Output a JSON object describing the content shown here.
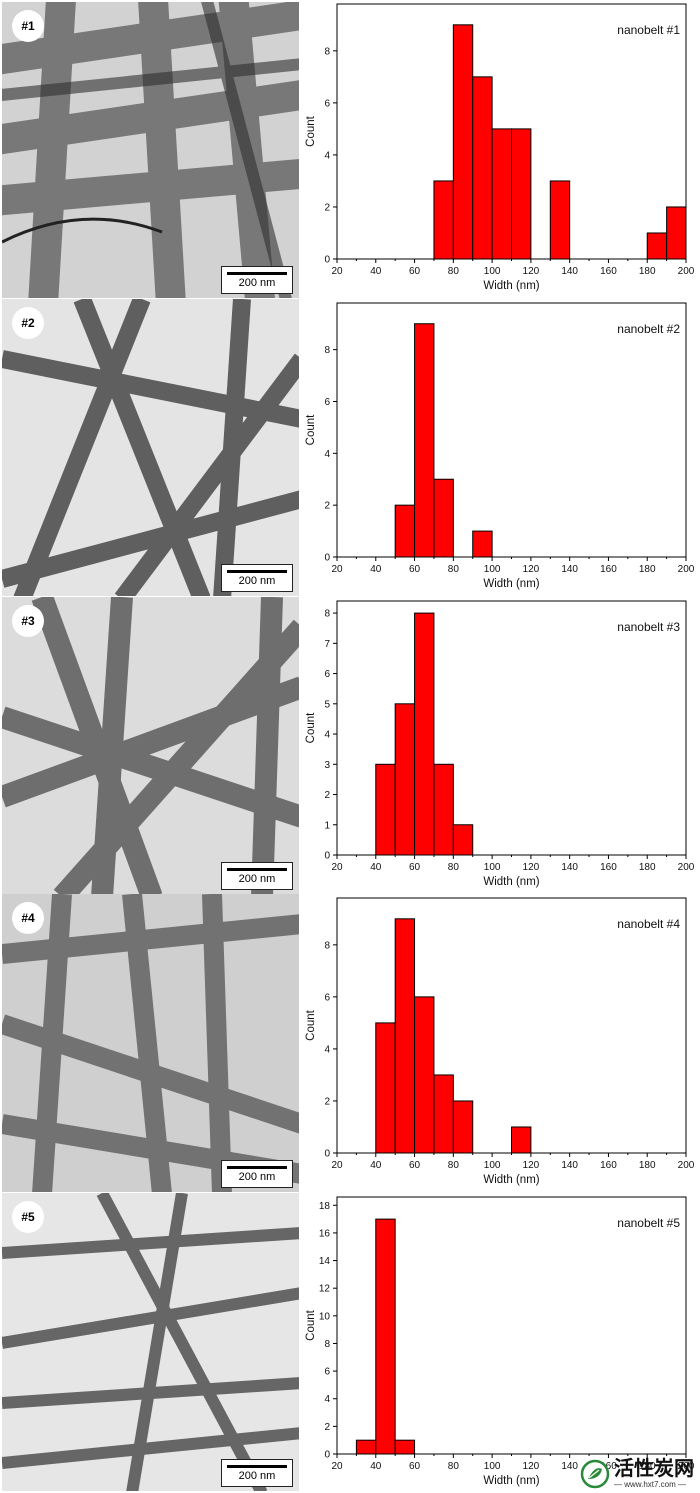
{
  "colors": {
    "bar": "#ff0000",
    "bar_edge": "#000000",
    "tem_bg": "#cfcfcf",
    "belt": "#555555"
  },
  "scale_label": "200 nm",
  "watermark": {
    "chinese": "活性炭网",
    "url": "— www.hxt7.com —",
    "icon": "leaf-badge-icon"
  },
  "panels": [
    {
      "tag": "#1"
    },
    {
      "tag": "#2"
    },
    {
      "tag": "#3"
    },
    {
      "tag": "#4"
    },
    {
      "tag": "#5"
    }
  ],
  "chart_data": [
    {
      "type": "bar",
      "title": "nanobelt #1",
      "xlabel": "Width (nm)",
      "ylabel": "Count",
      "xlim": [
        20,
        200
      ],
      "xticks": [
        20,
        40,
        60,
        80,
        100,
        120,
        140,
        160,
        180,
        200
      ],
      "ylim": [
        0,
        9.8
      ],
      "yticks": [
        0,
        2,
        4,
        6,
        8
      ],
      "bin_width": 10,
      "bins": [
        75,
        85,
        95,
        105,
        115,
        135,
        185,
        195
      ],
      "values": [
        3,
        9,
        7,
        5,
        5,
        3,
        1,
        2
      ]
    },
    {
      "type": "bar",
      "title": "nanobelt #2",
      "xlabel": "Width (nm)",
      "ylabel": "Count",
      "xlim": [
        20,
        200
      ],
      "xticks": [
        20,
        40,
        60,
        80,
        100,
        120,
        140,
        160,
        180,
        200
      ],
      "ylim": [
        0,
        9.8
      ],
      "yticks": [
        0,
        2,
        4,
        6,
        8
      ],
      "bin_width": 10,
      "bins": [
        55,
        65,
        75,
        95
      ],
      "values": [
        2,
        9,
        3,
        1
      ]
    },
    {
      "type": "bar",
      "title": "nanobelt #3",
      "xlabel": "Width (nm)",
      "ylabel": "Count",
      "xlim": [
        20,
        200
      ],
      "xticks": [
        20,
        40,
        60,
        80,
        100,
        120,
        140,
        160,
        180,
        200
      ],
      "ylim": [
        0,
        8.4
      ],
      "yticks": [
        0,
        1,
        2,
        3,
        4,
        5,
        6,
        7,
        8
      ],
      "bin_width": 10,
      "bins": [
        45,
        55,
        65,
        75,
        85
      ],
      "values": [
        3,
        5,
        8,
        3,
        1
      ]
    },
    {
      "type": "bar",
      "title": "nanobelt #4",
      "xlabel": "Width (nm)",
      "ylabel": "Count",
      "xlim": [
        20,
        200
      ],
      "xticks": [
        20,
        40,
        60,
        80,
        100,
        120,
        140,
        160,
        180,
        200
      ],
      "ylim": [
        0,
        9.8
      ],
      "yticks": [
        0,
        2,
        4,
        6,
        8
      ],
      "bin_width": 10,
      "bins": [
        45,
        55,
        65,
        75,
        85,
        115
      ],
      "values": [
        5,
        9,
        6,
        3,
        2,
        1
      ]
    },
    {
      "type": "bar",
      "title": "nanobelt #5",
      "xlabel": "Width (nm)",
      "ylabel": "Count",
      "xlim": [
        20,
        200
      ],
      "xticks": [
        20,
        40,
        60,
        80,
        100,
        120,
        140,
        160,
        180,
        200
      ],
      "ylim": [
        0,
        18.6
      ],
      "yticks": [
        0,
        2,
        4,
        6,
        8,
        10,
        12,
        14,
        16,
        18
      ],
      "bin_width": 10,
      "bins": [
        35,
        45,
        55
      ],
      "values": [
        1,
        17,
        1
      ]
    }
  ]
}
